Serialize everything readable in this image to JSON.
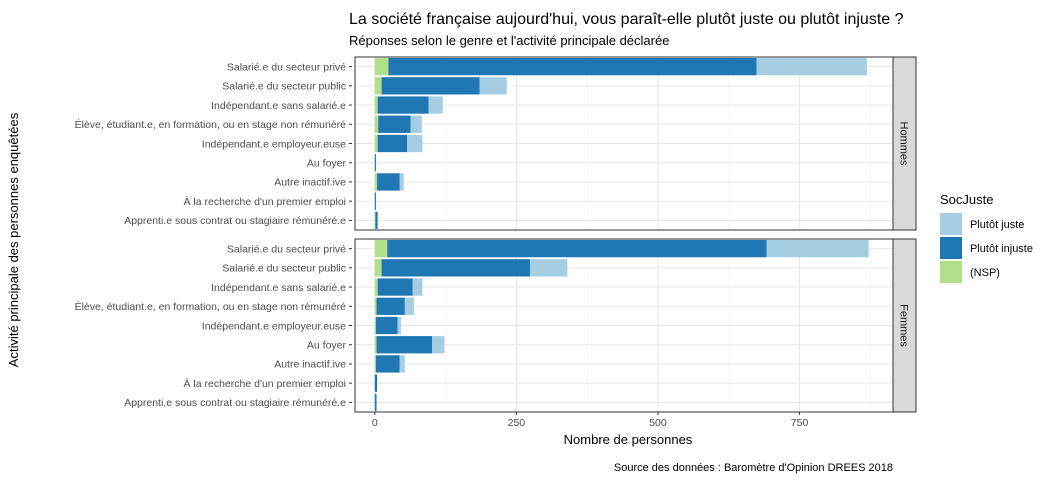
{
  "chart_data": {
    "type": "bar",
    "orientation": "horizontal",
    "stacked": true,
    "title": "La société française aujourd'hui, vous paraît-elle plutôt juste ou plutôt injuste ?",
    "subtitle": "Réponses selon le genre et l'activité principale déclarée",
    "xlabel": "Nombre de personnes",
    "ylabel": "Activité principale des personnes enquêtées",
    "caption": "Source des données : Baromètre d'Opinion DREES 2018",
    "xlim": [
      -35,
      915
    ],
    "xticks": [
      0,
      250,
      500,
      750
    ],
    "grid": true,
    "legend": {
      "title": "SocJuste",
      "position": "right",
      "entries": [
        {
          "key": "juste",
          "label": "Plutôt juste",
          "color": "#a6cee3"
        },
        {
          "key": "injuste",
          "label": "Plutôt injuste",
          "color": "#1f78b4"
        },
        {
          "key": "nsp",
          "label": "(NSP)",
          "color": "#b2df8a"
        }
      ]
    },
    "categories": [
      "Salarié.e du secteur privé",
      "Salarié.e du secteur public",
      "Indépendant.e sans salarié.e",
      "Élève, étudiant.e, en formation, ou en stage non rémunéré",
      "Indépendant.e employeur.euse",
      "Au foyer",
      "Autre inactif.ive",
      "À la recherche d'un premier emploi",
      "Apprenti.e sous contrat ou stagiaire rémunéré.e"
    ],
    "panels": [
      {
        "name": "Hommes",
        "nsp": [
          24,
          12,
          5,
          6,
          5,
          0,
          4,
          0,
          1
        ],
        "injuste": [
          650,
          173,
          90,
          57,
          52,
          2,
          40,
          2,
          4
        ],
        "juste": [
          195,
          48,
          25,
          20,
          27,
          0,
          7,
          0,
          0
        ]
      },
      {
        "name": "Femmes",
        "nsp": [
          22,
          12,
          5,
          3,
          2,
          3,
          2,
          0,
          0
        ],
        "injuste": [
          670,
          262,
          62,
          50,
          38,
          98,
          42,
          4,
          3
        ],
        "juste": [
          180,
          66,
          17,
          16,
          6,
          22,
          9,
          0,
          0
        ]
      }
    ]
  }
}
